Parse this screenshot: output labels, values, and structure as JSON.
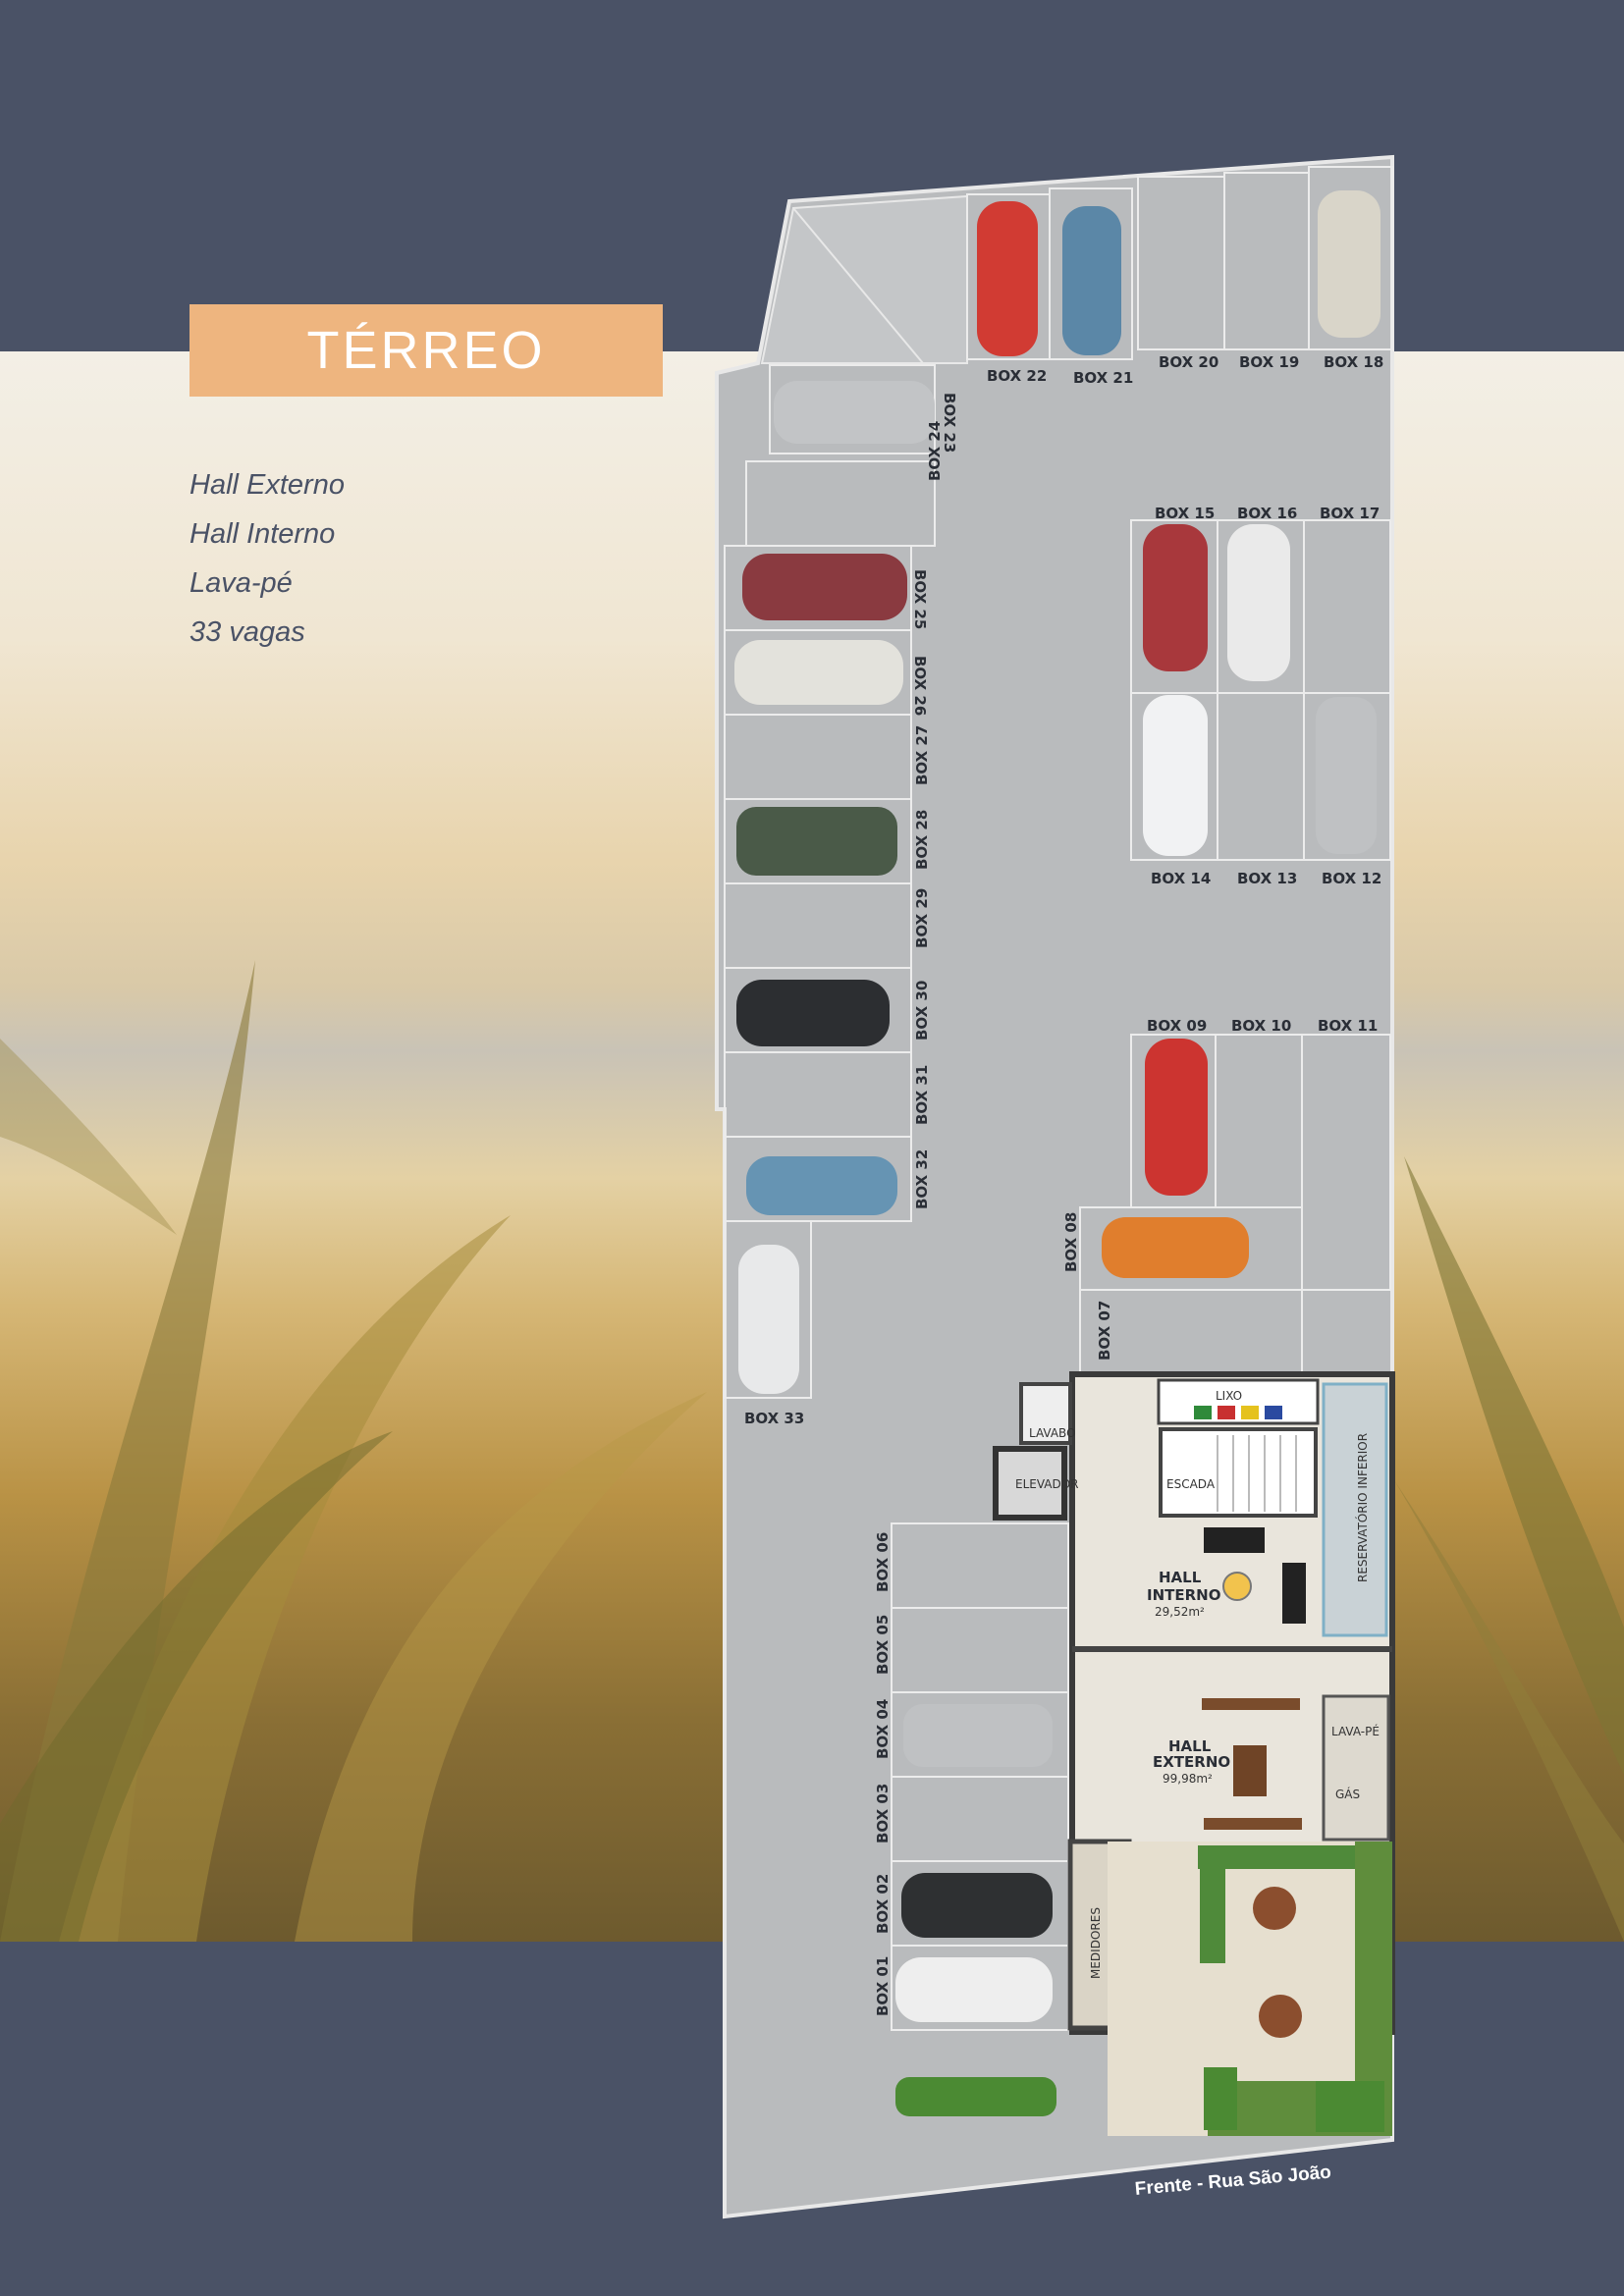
{
  "header": {
    "title": "TÉRREO"
  },
  "features": [
    "Hall Externo",
    "Hall Interno",
    "Lava-pé",
    "33 vagas"
  ],
  "plan": {
    "boxes": {
      "box22": "BOX 22",
      "box21": "BOX 21",
      "box20": "BOX 20",
      "box19": "BOX 19",
      "box18": "BOX 18",
      "box23": "BOX 23",
      "box24": "BOX 24",
      "box25": "BOX 25",
      "box26": "BOX 26",
      "box27": "BOX 27",
      "box28": "BOX 28",
      "box29": "BOX 29",
      "box30": "BOX 30",
      "box31": "BOX 31",
      "box32": "BOX 32",
      "box33": "BOX 33",
      "box15": "BOX 15",
      "box16": "BOX 16",
      "box17": "BOX 17",
      "box14": "BOX 14",
      "box13": "BOX 13",
      "box12": "BOX 12",
      "box09": "BOX 09",
      "box10": "BOX 10",
      "box11": "BOX 11",
      "box08": "BOX 08",
      "box07": "BOX 07",
      "box06": "BOX 06",
      "box05": "BOX 05",
      "box04": "BOX 04",
      "box03": "BOX 03",
      "box02": "BOX 02",
      "box01": "BOX 01"
    },
    "rooms": {
      "lavabo": "LAVABO",
      "elevador": "ELEVADOR",
      "lixo": "LIXO",
      "escada": "ESCADA",
      "reservatorio": "RESERVATÓRIO INFERIOR",
      "hall_interno": "HALL",
      "hall_interno_2": "INTERNO",
      "hall_interno_area": "29,52m²",
      "hall_externo": "HALL",
      "hall_externo_2": "EXTERNO",
      "hall_externo_area": "99,98m²",
      "lava_pe": "LAVA-PÉ",
      "gas": "GÁS",
      "medidores": "MEDIDORES"
    },
    "street": "Frente - Rua São João"
  },
  "colors": {
    "navy": "#4a5266",
    "accent": "#eeb57f",
    "floor": "#b9bbbd"
  }
}
